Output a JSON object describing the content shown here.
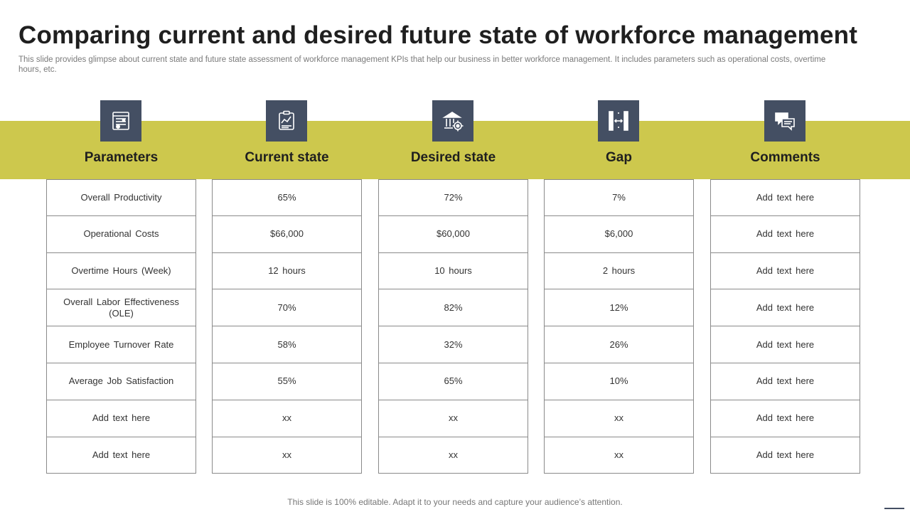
{
  "slide": {
    "title": "Comparing current and desired future state of workforce management",
    "subtitle": "This slide provides glimpse about current state and future state assessment of workforce management KPIs that help our business in better workforce management. It includes parameters such as operational costs, overtime hours, etc.",
    "footer": "This slide is 100% editable. Adapt it to your needs and capture your audience’s attention."
  },
  "colors": {
    "band": "#cdc84d",
    "icon_bg": "#444f63"
  },
  "columns": [
    {
      "header": "Parameters",
      "icon": "spreadsheet-icon",
      "cells": [
        "Overall  Productivity",
        "Operational Costs",
        "Overtime  Hours  (Week)",
        "Overall  Labor Effectiveness (OLE)",
        "Employee Turnover  Rate",
        "Average  Job  Satisfaction",
        "Add text here",
        "Add text here"
      ]
    },
    {
      "header": "Current state",
      "icon": "report-chart-icon",
      "cells": [
        "65%",
        "$66,000",
        "12 hours",
        "70%",
        "58%",
        "55%",
        "xx",
        "xx"
      ]
    },
    {
      "header": "Desired state",
      "icon": "bank-target-icon",
      "cells": [
        "72%",
        "$60,000",
        "10 hours",
        "82%",
        "32%",
        "65%",
        "xx",
        "xx"
      ]
    },
    {
      "header": "Gap",
      "icon": "gap-measure-icon",
      "cells": [
        "7%",
        "$6,000",
        "2 hours",
        "12%",
        "26%",
        "10%",
        "xx",
        "xx"
      ]
    },
    {
      "header": "Comments",
      "icon": "chat-bubbles-icon",
      "cells": [
        "Add text here",
        "Add text here",
        "Add text here",
        "Add text here",
        "Add text here",
        "Add text here",
        "Add text here",
        "Add text here"
      ]
    }
  ]
}
